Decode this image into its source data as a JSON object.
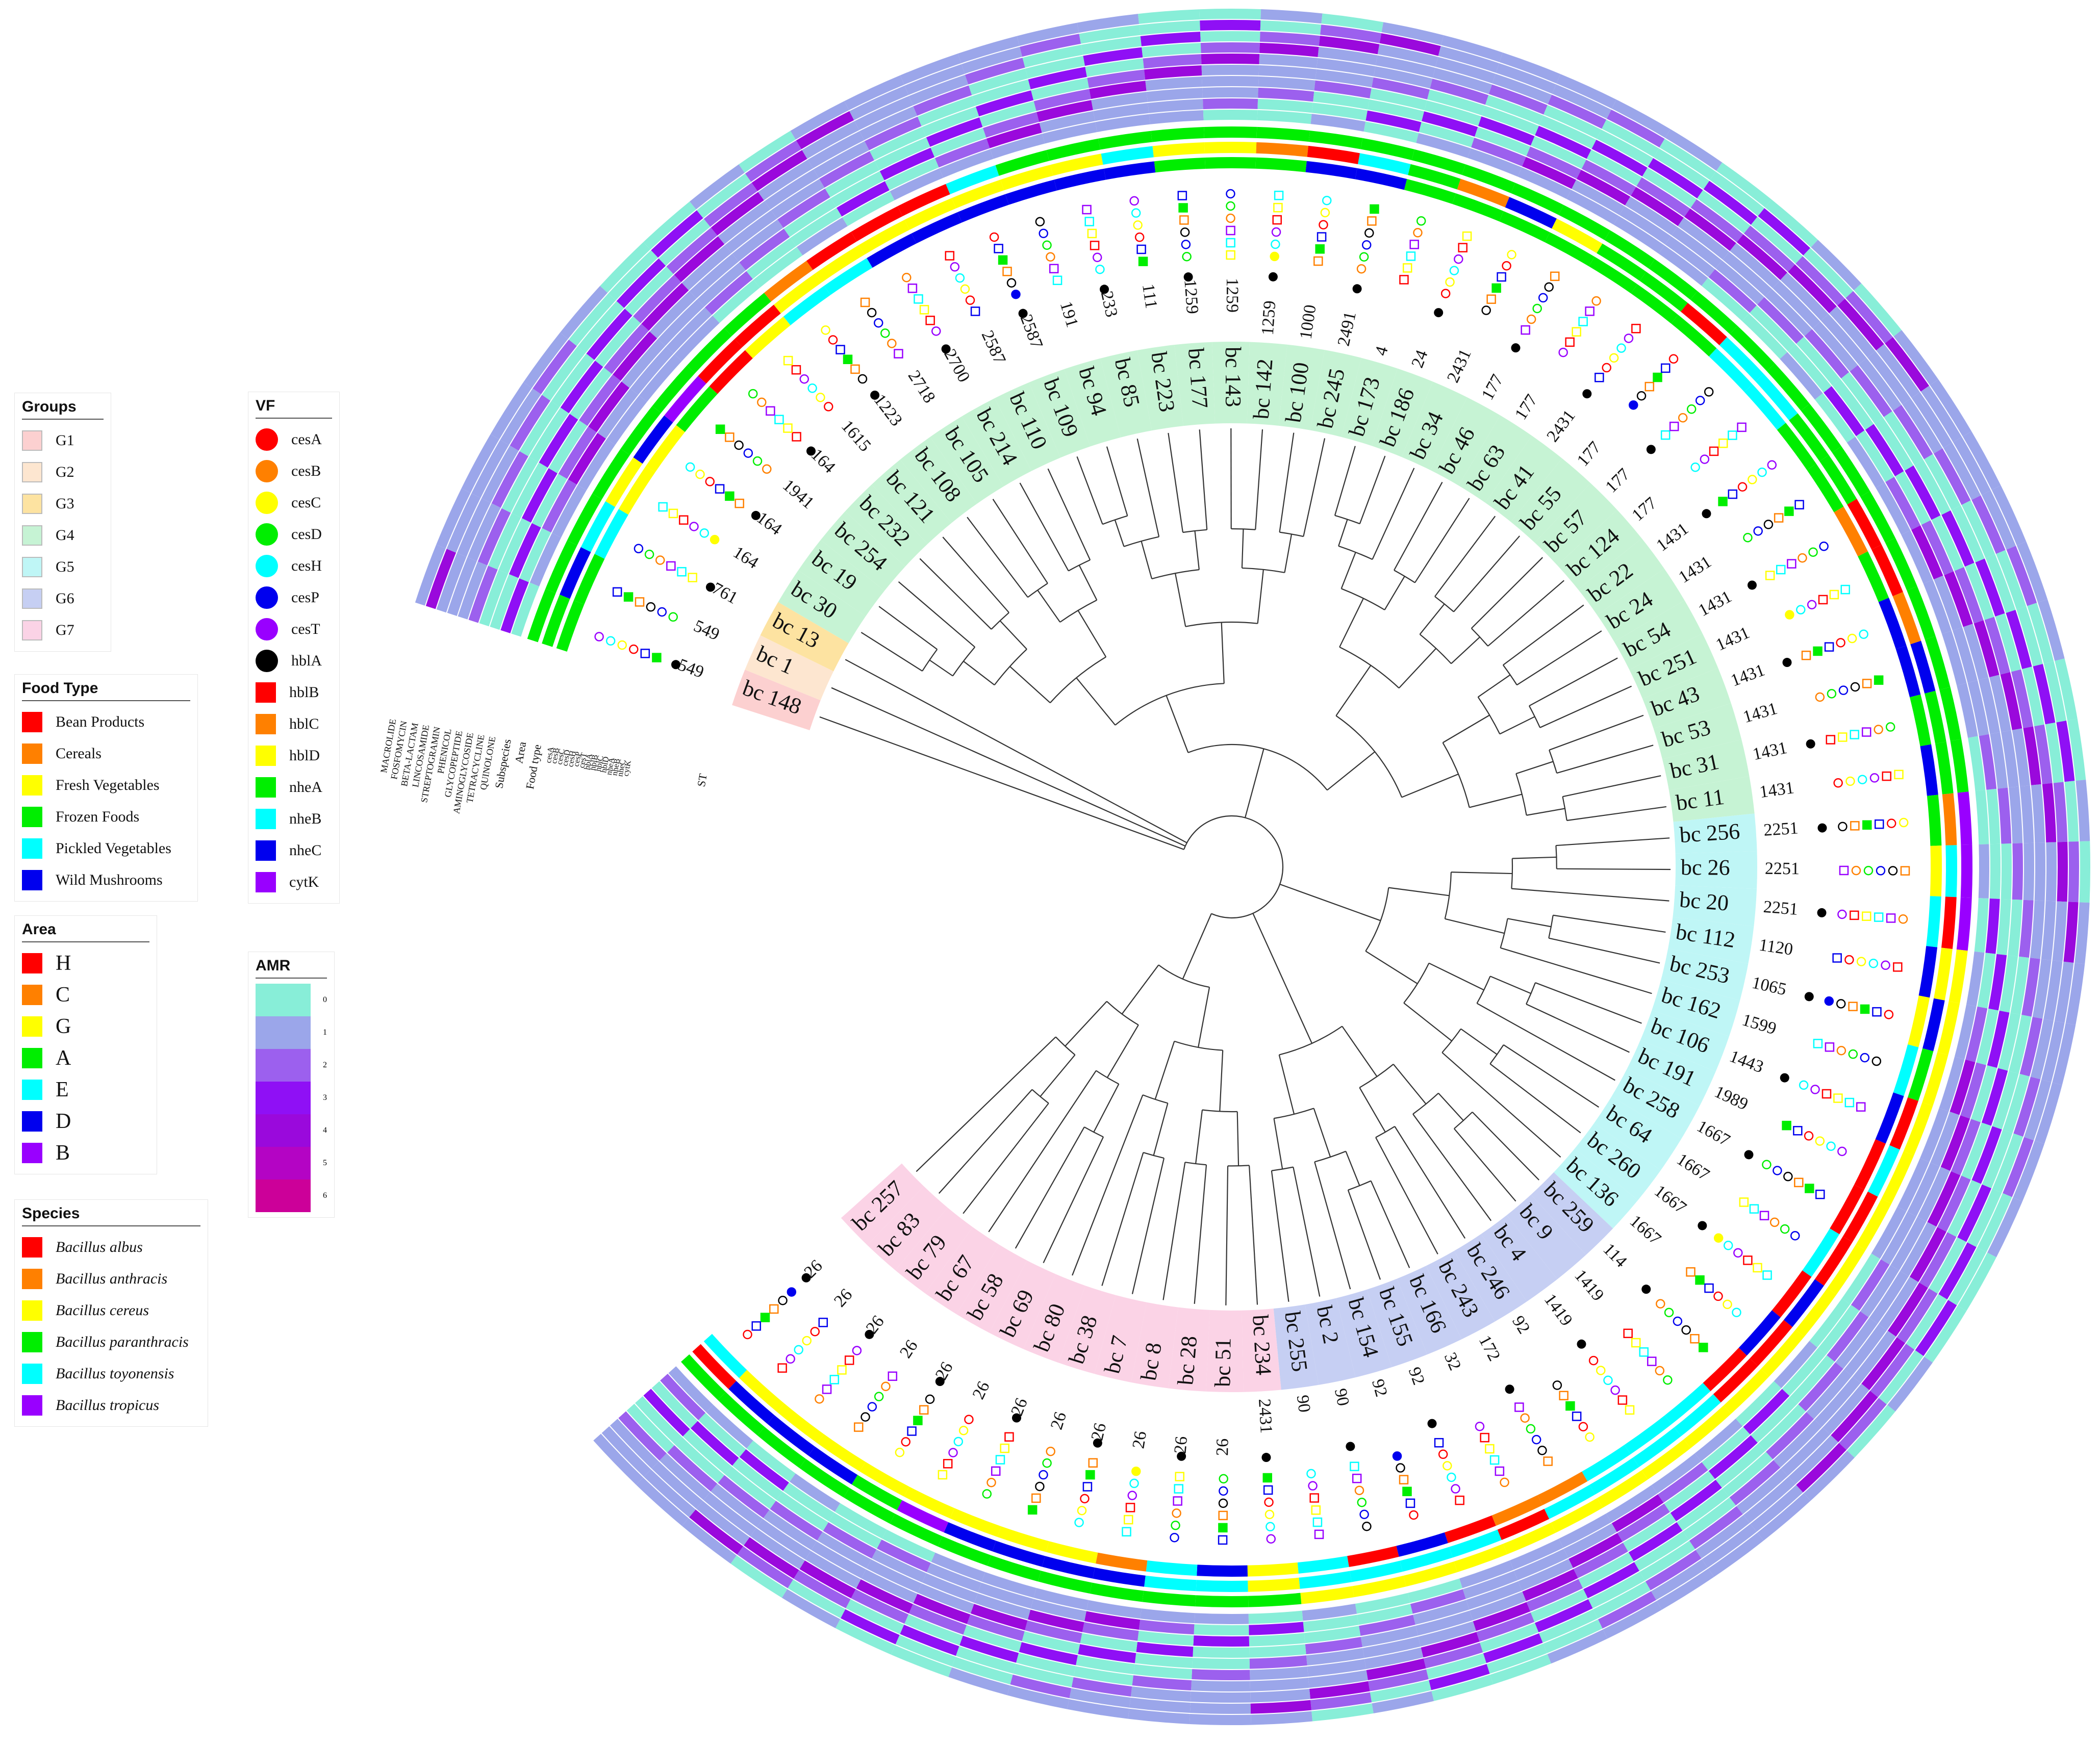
{
  "legends": {
    "groups": {
      "title": "Groups",
      "items": [
        {
          "label": "G1",
          "color": "#fcd0d0"
        },
        {
          "label": "G2",
          "color": "#fde6d0"
        },
        {
          "label": "G3",
          "color": "#fde3a1"
        },
        {
          "label": "G4",
          "color": "#c6f3d4"
        },
        {
          "label": "G5",
          "color": "#bff6f6"
        },
        {
          "label": "G6",
          "color": "#c6cff3"
        },
        {
          "label": "G7",
          "color": "#fbd3e6"
        }
      ]
    },
    "food_type": {
      "title": "Food Type",
      "items": [
        {
          "label": "Bean Products",
          "color": "#ff0000"
        },
        {
          "label": "Cereals",
          "color": "#ff8000"
        },
        {
          "label": "Fresh Vegetables",
          "color": "#ffff00"
        },
        {
          "label": "Frozen Foods",
          "color": "#00ee00"
        },
        {
          "label": "Pickled Vegetables",
          "color": "#00ffff"
        },
        {
          "label": "Wild Mushrooms",
          "color": "#0000ee"
        }
      ]
    },
    "area": {
      "title": "Area",
      "items": [
        {
          "label": "H",
          "color": "#ff0000"
        },
        {
          "label": "C",
          "color": "#ff8000"
        },
        {
          "label": "G",
          "color": "#ffff00"
        },
        {
          "label": "A",
          "color": "#00ee00"
        },
        {
          "label": "E",
          "color": "#00ffff"
        },
        {
          "label": "D",
          "color": "#0000ee"
        },
        {
          "label": "B",
          "color": "#9900ff"
        }
      ]
    },
    "species": {
      "title": "Species",
      "items": [
        {
          "label": "Bacillus albus",
          "color": "#ff0000"
        },
        {
          "label": "Bacillus anthracis",
          "color": "#ff8000"
        },
        {
          "label": "Bacillus cereus",
          "color": "#ffff00"
        },
        {
          "label": "Bacillus paranthracis",
          "color": "#00ee00"
        },
        {
          "label": "Bacillus toyonensis",
          "color": "#00ffff"
        },
        {
          "label": "Bacillus tropicus",
          "color": "#9900ff"
        }
      ]
    },
    "vf": {
      "title": "VF",
      "items": [
        {
          "label": "cesA",
          "color": "#ff0000",
          "shape": "circle"
        },
        {
          "label": "cesB",
          "color": "#ff8000",
          "shape": "circle"
        },
        {
          "label": "cesC",
          "color": "#ffff00",
          "shape": "circle"
        },
        {
          "label": "cesD",
          "color": "#00ee00",
          "shape": "circle"
        },
        {
          "label": "cesH",
          "color": "#00ffff",
          "shape": "circle"
        },
        {
          "label": "cesP",
          "color": "#0000ee",
          "shape": "circle"
        },
        {
          "label": "cesT",
          "color": "#9900ff",
          "shape": "circle"
        },
        {
          "label": "hblA",
          "color": "#000000",
          "shape": "circle"
        },
        {
          "label": "hblB",
          "color": "#ff0000",
          "shape": "square"
        },
        {
          "label": "hblC",
          "color": "#ff8000",
          "shape": "square"
        },
        {
          "label": "hblD",
          "color": "#ffff00",
          "shape": "square"
        },
        {
          "label": "nheA",
          "color": "#00ee00",
          "shape": "square"
        },
        {
          "label": "nheB",
          "color": "#00ffff",
          "shape": "square"
        },
        {
          "label": "nheC",
          "color": "#0000ee",
          "shape": "square"
        },
        {
          "label": "cytK",
          "color": "#9900ff",
          "shape": "square"
        }
      ]
    },
    "amr": {
      "title": "AMR",
      "items": [
        {
          "label": "0",
          "color": "#88eed8"
        },
        {
          "label": "1",
          "color": "#9ba6ea"
        },
        {
          "label": "2",
          "color": "#9c60ee"
        },
        {
          "label": "3",
          "color": "#8f10f5"
        },
        {
          "label": "4",
          "color": "#9a09dc"
        },
        {
          "label": "5",
          "color": "#b404c4"
        },
        {
          "label": "6",
          "color": "#cc0099"
        }
      ]
    }
  },
  "ring_labels": {
    "amr_classes": [
      "QUINOLONE",
      "TETRACYCLINE",
      "AMINOGLYCOSIDE",
      "GLYCOPEPTIDE",
      "PHENICOL",
      "STREPTOGRAMIN",
      "LINCOSAMIDE",
      "BETA-LACTAM",
      "FOSFOMYCIN",
      "MACROLIDE"
    ],
    "subspecies": "Subspecies",
    "area": "Area",
    "food_type": "Food type",
    "vf_genes": [
      "cytK",
      "nheC",
      "nheB",
      "nheA",
      "hblD",
      "hblC",
      "hblB",
      "hblA",
      "cesT",
      "cesP",
      "cesH",
      "cesD",
      "cesC",
      "cesB",
      "cesA"
    ],
    "st": "ST"
  },
  "tree": {
    "leaves": [
      {
        "id": "bc 148",
        "st": "549",
        "group": "G1",
        "food": "Frozen Foods",
        "area": "A",
        "species": "Bacillus paranthracis"
      },
      {
        "id": "bc 1",
        "st": "549",
        "group": "G2",
        "food": "Frozen Foods",
        "area": "D",
        "species": "Bacillus paranthracis"
      },
      {
        "id": "bc 13",
        "st": "761",
        "group": "G3",
        "food": "Pickled Vegetables",
        "area": "E",
        "species": "Bacillus paranthracis"
      },
      {
        "id": "bc 30",
        "st": "164",
        "group": "G4",
        "food": "Fresh Vegetables",
        "area": "G",
        "species": "Bacillus paranthracis"
      },
      {
        "id": "bc 19",
        "st": "164",
        "group": "G4",
        "food": "Fresh Vegetables",
        "area": "D",
        "species": "Bacillus paranthracis"
      },
      {
        "id": "bc 254",
        "st": "1941",
        "group": "G4",
        "food": "Frozen Foods",
        "area": "B",
        "species": "Bacillus paranthracis"
      },
      {
        "id": "bc 232",
        "st": "164",
        "group": "G4",
        "food": "Bean Products",
        "area": "H",
        "species": "Bacillus paranthracis"
      },
      {
        "id": "bc 121",
        "st": "1615",
        "group": "G4",
        "food": "Fresh Vegetables",
        "area": "H",
        "species": "Bacillus paranthracis"
      },
      {
        "id": "bc 108",
        "st": "1223",
        "group": "G4",
        "food": "Pickled Vegetables",
        "area": "G",
        "species": "Bacillus anthracis"
      },
      {
        "id": "bc 105",
        "st": "2718",
        "group": "G4",
        "food": "Pickled Vegetables",
        "area": "G",
        "species": "Bacillus albus"
      },
      {
        "id": "bc 214",
        "st": "2700",
        "group": "G4",
        "food": "Wild Mushrooms",
        "area": "G",
        "species": "Bacillus albus"
      },
      {
        "id": "bc 110",
        "st": "2587",
        "group": "G4",
        "food": "Wild Mushrooms",
        "area": "G",
        "species": "Bacillus albus"
      },
      {
        "id": "bc 109",
        "st": "2587",
        "group": "G4",
        "food": "Wild Mushrooms",
        "area": "G",
        "species": "Bacillus toyonensis"
      },
      {
        "id": "bc 94",
        "st": "191",
        "group": "G4",
        "food": "Wild Mushrooms",
        "area": "G",
        "species": "Bacillus paranthracis"
      },
      {
        "id": "bc 85",
        "st": "233",
        "group": "G4",
        "food": "Wild Mushrooms",
        "area": "G",
        "species": "Bacillus paranthracis"
      },
      {
        "id": "bc 223",
        "st": "111",
        "group": "G4",
        "food": "Wild Mushrooms",
        "area": "E",
        "species": "Bacillus paranthracis"
      },
      {
        "id": "bc 177",
        "st": "1259",
        "group": "G4",
        "food": "Frozen Foods",
        "area": "G",
        "species": "Bacillus paranthracis"
      },
      {
        "id": "bc 143",
        "st": "1259",
        "group": "G4",
        "food": "Frozen Foods",
        "area": "G",
        "species": "Bacillus paranthracis"
      },
      {
        "id": "bc 142",
        "st": "1259",
        "group": "G4",
        "food": "Frozen Foods",
        "area": "C",
        "species": "Bacillus paranthracis"
      },
      {
        "id": "bc 100",
        "st": "1000",
        "group": "G4",
        "food": "Wild Mushrooms",
        "area": "H",
        "species": "Bacillus paranthracis"
      },
      {
        "id": "bc 245",
        "st": "2491",
        "group": "G4",
        "food": "Wild Mushrooms",
        "area": "E",
        "species": "Bacillus paranthracis"
      },
      {
        "id": "bc 173",
        "st": "4",
        "group": "G4",
        "food": "Frozen Foods",
        "area": "A",
        "species": "Bacillus paranthracis"
      },
      {
        "id": "bc 186",
        "st": "24",
        "group": "G4",
        "food": "Frozen Foods",
        "area": "C",
        "species": "Bacillus paranthracis"
      },
      {
        "id": "bc 34",
        "st": "2431",
        "group": "G4",
        "food": "Frozen Foods",
        "area": "D",
        "species": "Bacillus paranthracis"
      },
      {
        "id": "bc 46",
        "st": "177",
        "group": "G4",
        "food": "Frozen Foods",
        "area": "G",
        "species": "Bacillus paranthracis"
      },
      {
        "id": "bc 63",
        "st": "177",
        "group": "G4",
        "food": "Frozen Foods",
        "area": "A",
        "species": "Bacillus paranthracis"
      },
      {
        "id": "bc 41",
        "st": "2431",
        "group": "G4",
        "food": "Frozen Foods",
        "area": "A",
        "species": "Bacillus paranthracis"
      },
      {
        "id": "bc 55",
        "st": "177",
        "group": "G4",
        "food": "Frozen Foods",
        "area": "H",
        "species": "Bacillus paranthracis"
      },
      {
        "id": "bc 57",
        "st": "177",
        "group": "G4",
        "food": "Pickled Vegetables",
        "area": "E",
        "species": "Bacillus paranthracis"
      },
      {
        "id": "bc 124",
        "st": "177",
        "group": "G4",
        "food": "Pickled Vegetables",
        "area": "E",
        "species": "Bacillus paranthracis"
      },
      {
        "id": "bc 22",
        "st": "1431",
        "group": "G4",
        "food": "Frozen Foods",
        "area": "A",
        "species": "Bacillus paranthracis"
      },
      {
        "id": "bc 24",
        "st": "1431",
        "group": "G4",
        "food": "Frozen Foods",
        "area": "A",
        "species": "Bacillus paranthracis"
      },
      {
        "id": "bc 54",
        "st": "1431",
        "group": "G4",
        "food": "Cereals",
        "area": "H",
        "species": "Bacillus paranthracis"
      },
      {
        "id": "bc 251",
        "st": "1431",
        "group": "G4",
        "food": "Frozen Foods",
        "area": "H",
        "species": "Bacillus paranthracis"
      },
      {
        "id": "bc 43",
        "st": "1431",
        "group": "G4",
        "food": "Wild Mushrooms",
        "area": "C",
        "species": "Bacillus paranthracis"
      },
      {
        "id": "bc 53",
        "st": "1431",
        "group": "G4",
        "food": "Wild Mushrooms",
        "area": "D",
        "species": "Bacillus paranthracis"
      },
      {
        "id": "bc 31",
        "st": "1431",
        "group": "G4",
        "food": "Frozen Foods",
        "area": "A",
        "species": "Bacillus paranthracis"
      },
      {
        "id": "bc 11",
        "st": "1431",
        "group": "G4",
        "food": "Wild Mushrooms",
        "area": "A",
        "species": "Bacillus paranthracis"
      },
      {
        "id": "bc 256",
        "st": "2251",
        "group": "G5",
        "food": "Frozen Foods",
        "area": "C",
        "species": "Bacillus tropicus"
      },
      {
        "id": "bc 26",
        "st": "2251",
        "group": "G5",
        "food": "Fresh Vegetables",
        "area": "E",
        "species": "Bacillus tropicus"
      },
      {
        "id": "bc 20",
        "st": "2251",
        "group": "G5",
        "food": "Pickled Vegetables",
        "area": "H",
        "species": "Bacillus tropicus"
      },
      {
        "id": "bc 112",
        "st": "1120",
        "group": "G5",
        "food": "Wild Mushrooms",
        "area": "G",
        "species": "Bacillus cereus"
      },
      {
        "id": "bc 253",
        "st": "1065",
        "group": "G5",
        "food": "Fresh Vegetables",
        "area": "D",
        "species": "Bacillus cereus"
      },
      {
        "id": "bc 162",
        "st": "1599",
        "group": "G5",
        "food": "Pickled Vegetables",
        "area": "A",
        "species": "Bacillus cereus"
      },
      {
        "id": "bc 106",
        "st": "1443",
        "group": "G5",
        "food": "Wild Mushrooms",
        "area": "H",
        "species": "Bacillus cereus"
      },
      {
        "id": "bc 191",
        "st": "1989",
        "group": "G5",
        "food": "Bean Products",
        "area": "E",
        "species": "Bacillus cereus"
      },
      {
        "id": "bc 258",
        "st": "1667",
        "group": "G5",
        "food": "Bean Products",
        "area": "H",
        "species": "Bacillus cereus"
      },
      {
        "id": "bc 64",
        "st": "1667",
        "group": "G5",
        "food": "Pickled Vegetables",
        "area": "H",
        "species": "Bacillus cereus"
      },
      {
        "id": "bc 260",
        "st": "1667",
        "group": "G5",
        "food": "Bean Products",
        "area": "D",
        "species": "Bacillus cereus"
      },
      {
        "id": "bc 136",
        "st": "1667",
        "group": "G5",
        "food": "Wild Mushrooms",
        "area": "H",
        "species": "Bacillus cereus"
      },
      {
        "id": "bc 259",
        "st": "114",
        "group": "G6",
        "food": "Bean Products",
        "area": "H",
        "species": "Bacillus cereus"
      },
      {
        "id": "bc 9",
        "st": "1419",
        "group": "G6",
        "food": "Pickled Vegetables",
        "area": "E",
        "species": "Bacillus cereus"
      },
      {
        "id": "bc 4",
        "st": "1419",
        "group": "G6",
        "food": "Pickled Vegetables",
        "area": "E",
        "species": "Bacillus cereus"
      },
      {
        "id": "bc 246",
        "st": "92",
        "group": "G6",
        "food": "Pickled Vegetables",
        "area": "E",
        "species": "Bacillus cereus"
      },
      {
        "id": "bc 243",
        "st": "172",
        "group": "G6",
        "food": "Cereals",
        "area": "E",
        "species": "Bacillus cereus"
      },
      {
        "id": "bc 166",
        "st": "32",
        "group": "G6",
        "food": "Cereals",
        "area": "H",
        "species": "Bacillus cereus"
      },
      {
        "id": "bc 155",
        "st": "92",
        "group": "G6",
        "food": "Bean Products",
        "area": "E",
        "species": "Bacillus cereus"
      },
      {
        "id": "bc 154",
        "st": "92",
        "group": "G6",
        "food": "Wild Mushrooms",
        "area": "E",
        "species": "Bacillus cereus"
      },
      {
        "id": "bc 2",
        "st": "90",
        "group": "G6",
        "food": "Bean Products",
        "area": "E",
        "species": "Bacillus cereus"
      },
      {
        "id": "bc 255",
        "st": "90",
        "group": "G6",
        "food": "Pickled Vegetables",
        "area": "E",
        "species": "Bacillus cereus"
      },
      {
        "id": "bc 234",
        "st": "2431",
        "group": "G7",
        "food": "Fresh Vegetables",
        "area": "G",
        "species": "Bacillus paranthracis"
      },
      {
        "id": "bc 51",
        "st": "26",
        "group": "G7",
        "food": "Wild Mushrooms",
        "area": "E",
        "species": "Bacillus paranthracis"
      },
      {
        "id": "bc 28",
        "st": "26",
        "group": "G7",
        "food": "Pickled Vegetables",
        "area": "E",
        "species": "Bacillus paranthracis"
      },
      {
        "id": "bc 8",
        "st": "26",
        "group": "G7",
        "food": "Cereals",
        "area": "D",
        "species": "Bacillus paranthracis"
      },
      {
        "id": "bc 7",
        "st": "26",
        "group": "G7",
        "food": "Fresh Vegetables",
        "area": "D",
        "species": "Bacillus paranthracis"
      },
      {
        "id": "bc 38",
        "st": "26",
        "group": "G7",
        "food": "Fresh Vegetables",
        "area": "D",
        "species": "Bacillus paranthracis"
      },
      {
        "id": "bc 80",
        "st": "26",
        "group": "G7",
        "food": "Fresh Vegetables",
        "area": "D",
        "species": "Bacillus paranthracis"
      },
      {
        "id": "bc 69",
        "st": "26",
        "group": "G7",
        "food": "Fresh Vegetables",
        "area": "B",
        "species": "Bacillus paranthracis"
      },
      {
        "id": "bc 58",
        "st": "26",
        "group": "G7",
        "food": "Fresh Vegetables",
        "area": "A",
        "species": "Bacillus paranthracis"
      },
      {
        "id": "bc 67",
        "st": "26",
        "group": "G7",
        "food": "Fresh Vegetables",
        "area": "D",
        "species": "Bacillus paranthracis"
      },
      {
        "id": "bc 79",
        "st": "26",
        "group": "G7",
        "food": "Fresh Vegetables",
        "area": "D",
        "species": "Bacillus paranthracis"
      },
      {
        "id": "bc 83",
        "st": "26",
        "group": "G7",
        "food": "Fresh Vegetables",
        "area": "D",
        "species": "Bacillus paranthracis"
      },
      {
        "id": "bc 257",
        "st": "26",
        "group": "G7",
        "food": "Pickled Vegetables",
        "area": "H",
        "species": "Bacillus paranthracis"
      }
    ]
  }
}
